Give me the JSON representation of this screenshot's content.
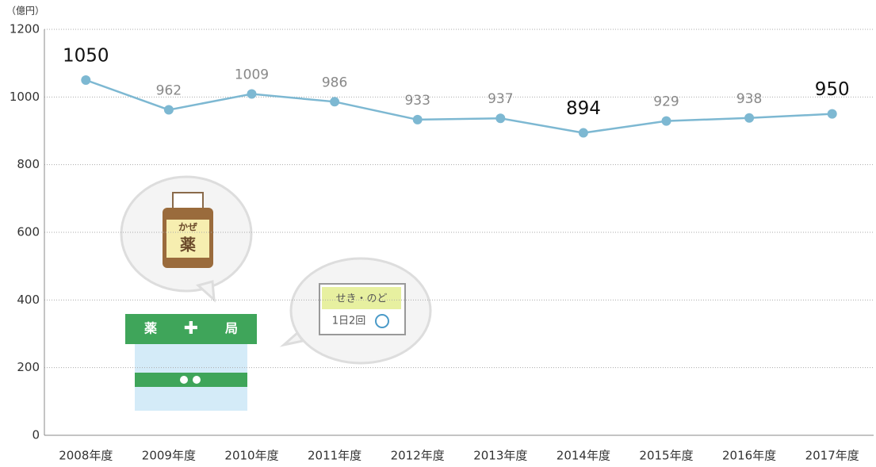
{
  "chart_data": {
    "type": "line",
    "y_label": "（億円）",
    "categories": [
      "2008年度",
      "2009年度",
      "2010年度",
      "2011年度",
      "2012年度",
      "2013年度",
      "2014年度",
      "2015年度",
      "2016年度",
      "2017年度"
    ],
    "values": [
      1050,
      962,
      1009,
      986,
      933,
      937,
      894,
      929,
      938,
      950
    ],
    "highlight": [
      0,
      6,
      9
    ],
    "color": "#7db8d2",
    "ylim": [
      0,
      1200
    ],
    "yticks": [
      0,
      200,
      400,
      600,
      800,
      1000,
      1200
    ],
    "grid": true,
    "annotations": [
      "かぜ",
      "薬",
      "薬",
      "局",
      "せき・のど",
      "1日2回"
    ]
  }
}
